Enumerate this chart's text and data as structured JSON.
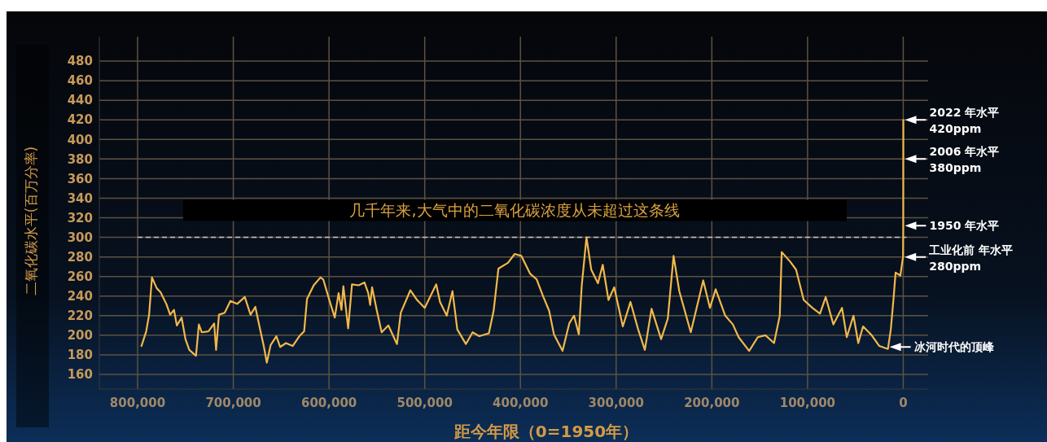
{
  "chart_data": {
    "type": "line",
    "xlabel": "距今年限（0=1950年）",
    "ylabel": "二氧化碳水平(百万分率)",
    "xlim": [
      840000,
      -26000
    ],
    "ylim": [
      145,
      505
    ],
    "xticks": [
      {
        "value": 800000,
        "label": "800,000"
      },
      {
        "value": 700000,
        "label": "700,000"
      },
      {
        "value": 600000,
        "label": "600,000"
      },
      {
        "value": 500000,
        "label": "500,000"
      },
      {
        "value": 400000,
        "label": "400,000"
      },
      {
        "value": 300000,
        "label": "300,000"
      },
      {
        "value": 200000,
        "label": "200,000"
      },
      {
        "value": 100000,
        "label": "100,000"
      },
      {
        "value": 0,
        "label": "0"
      }
    ],
    "yticks": [
      160,
      180,
      200,
      220,
      240,
      260,
      280,
      300,
      320,
      340,
      360,
      380,
      400,
      420,
      440,
      460,
      480
    ],
    "grid": true,
    "marker": "none",
    "line_style": "solid",
    "series": [
      {
        "color": "#f2b84b",
        "x": [
          796000,
          791000,
          788000,
          785000,
          780000,
          776000,
          770000,
          766000,
          762000,
          759000,
          754000,
          750000,
          746000,
          739000,
          736000,
          733000,
          726000,
          720000,
          718000,
          715000,
          709000,
          703000,
          696000,
          688000,
          682000,
          677000,
          674000,
          668000,
          665000,
          661000,
          655000,
          651000,
          645000,
          638000,
          631000,
          626000,
          623000,
          616000,
          609000,
          606000,
          600000,
          594000,
          590000,
          587000,
          585000,
          580000,
          576000,
          569000,
          563000,
          559000,
          557000,
          555000,
          550000,
          545000,
          538000,
          529000,
          525000,
          515000,
          508000,
          500000,
          488000,
          484000,
          477000,
          471000,
          466000,
          457000,
          450000,
          443000,
          433000,
          428000,
          423000,
          413000,
          406000,
          399000,
          390000,
          383000,
          376000,
          370000,
          365000,
          356000,
          349000,
          344000,
          339000,
          336000,
          331000,
          326000,
          319000,
          314000,
          308000,
          302000,
          293000,
          285000,
          277000,
          270000,
          263000,
          253000,
          246000,
          240000,
          234000,
          222000,
          209000,
          202000,
          196000,
          186000,
          178000,
          172000,
          161000,
          152000,
          144000,
          135000,
          129000,
          127000,
          118000,
          112000,
          104000,
          95000,
          87000,
          81000,
          73000,
          64000,
          59000,
          52000,
          47000,
          42000,
          33000,
          25000,
          16000,
          13000,
          10000,
          8000,
          3000,
          1000,
          200,
          0,
          -56,
          -72
        ],
        "values": [
          189,
          204,
          221,
          259,
          248,
          244,
          232,
          221,
          226,
          210,
          218,
          196,
          185,
          179,
          211,
          203,
          204,
          212,
          185,
          221,
          223,
          235,
          232,
          239,
          221,
          229,
          215,
          188,
          172,
          190,
          199,
          188,
          192,
          189,
          199,
          204,
          237,
          251,
          259,
          257,
          237,
          218,
          243,
          226,
          250,
          207,
          252,
          251,
          254,
          243,
          231,
          249,
          225,
          203,
          210,
          191,
          223,
          246,
          236,
          228,
          252,
          234,
          220,
          245,
          206,
          191,
          203,
          199,
          202,
          225,
          268,
          274,
          283,
          281,
          263,
          257,
          239,
          225,
          201,
          184,
          212,
          220,
          201,
          250,
          300,
          267,
          253,
          272,
          236,
          249,
          209,
          234,
          206,
          185,
          227,
          196,
          217,
          281,
          245,
          203,
          256,
          228,
          247,
          220,
          211,
          198,
          184,
          198,
          200,
          192,
          220,
          285,
          275,
          267,
          236,
          228,
          222,
          239,
          211,
          228,
          198,
          220,
          192,
          209,
          200,
          189,
          186,
          206,
          239,
          264,
          261,
          275,
          280,
          310,
          380,
          420
        ]
      }
    ],
    "ref_lines": [
      {
        "axis": "y",
        "value": 300,
        "label": "几千年来,大气中的二氧化碳浓度从未超过这条线",
        "color": "#c8c8c8",
        "line_style": "dashed"
      }
    ],
    "annotations": [
      {
        "text": "2022 年水平\n420ppm",
        "x": -72,
        "y": 420
      },
      {
        "text": "2006 年水平\n380ppm",
        "x": -56,
        "y": 380
      },
      {
        "text": "1950 年水平",
        "x": 0,
        "y": 312
      },
      {
        "text": "工业化前 年水平\n280ppm",
        "x": 200,
        "y": 280
      },
      {
        "text": "冰河时代的顶峰",
        "x": 16000,
        "y": 188
      }
    ]
  }
}
